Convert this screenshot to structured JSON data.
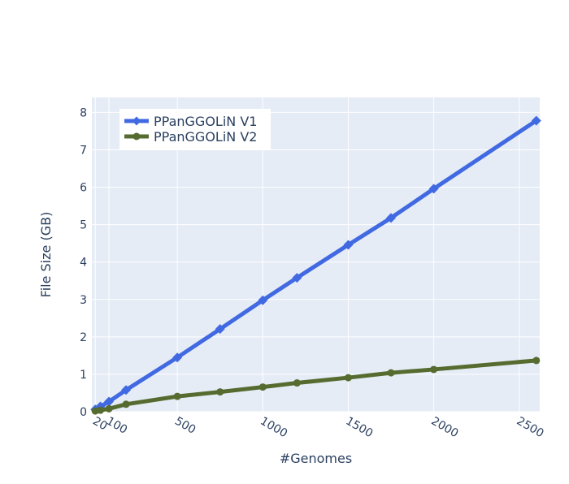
{
  "chart_data": {
    "type": "line",
    "title": "",
    "xlabel": "#Genomes",
    "ylabel": "File Size (GB)",
    "xlim": [
      0,
      2620
    ],
    "ylim": [
      0,
      8.4
    ],
    "x_ticks": [
      {
        "value": 20,
        "label": "20"
      },
      {
        "value": 100,
        "label": "100"
      },
      {
        "value": 500,
        "label": "500"
      },
      {
        "value": 1000,
        "label": "1000"
      },
      {
        "value": 1500,
        "label": "1500"
      },
      {
        "value": 2000,
        "label": "2000"
      },
      {
        "value": 2500,
        "label": "2500"
      }
    ],
    "y_ticks": [
      {
        "value": 0,
        "label": "0"
      },
      {
        "value": 1,
        "label": "1"
      },
      {
        "value": 2,
        "label": "2"
      },
      {
        "value": 3,
        "label": "3"
      },
      {
        "value": 4,
        "label": "4"
      },
      {
        "value": 5,
        "label": "5"
      },
      {
        "value": 6,
        "label": "6"
      },
      {
        "value": 7,
        "label": "7"
      },
      {
        "value": 8,
        "label": "8"
      }
    ],
    "grid": true,
    "legend_position": "top-left",
    "colors": {
      "plot_background": "#e5ecf6",
      "grid": "#ffffff",
      "text": "#2a3f5f"
    },
    "series": [
      {
        "name": "PPanGGOLiN V1",
        "color": "#4169e1",
        "marker": "diamond",
        "x": [
          20,
          50,
          100,
          200,
          500,
          750,
          1000,
          1200,
          1500,
          1750,
          2000,
          2600
        ],
        "y": [
          0.06,
          0.14,
          0.27,
          0.58,
          1.45,
          2.21,
          2.98,
          3.58,
          4.46,
          5.18,
          5.96,
          7.78
        ]
      },
      {
        "name": "PPanGGOLiN V2",
        "color": "#556b2f",
        "marker": "circle",
        "x": [
          20,
          50,
          100,
          200,
          500,
          750,
          1000,
          1200,
          1500,
          1750,
          2000,
          2600
        ],
        "y": [
          0.02,
          0.04,
          0.08,
          0.2,
          0.41,
          0.53,
          0.66,
          0.77,
          0.91,
          1.04,
          1.13,
          1.37
        ]
      }
    ]
  }
}
